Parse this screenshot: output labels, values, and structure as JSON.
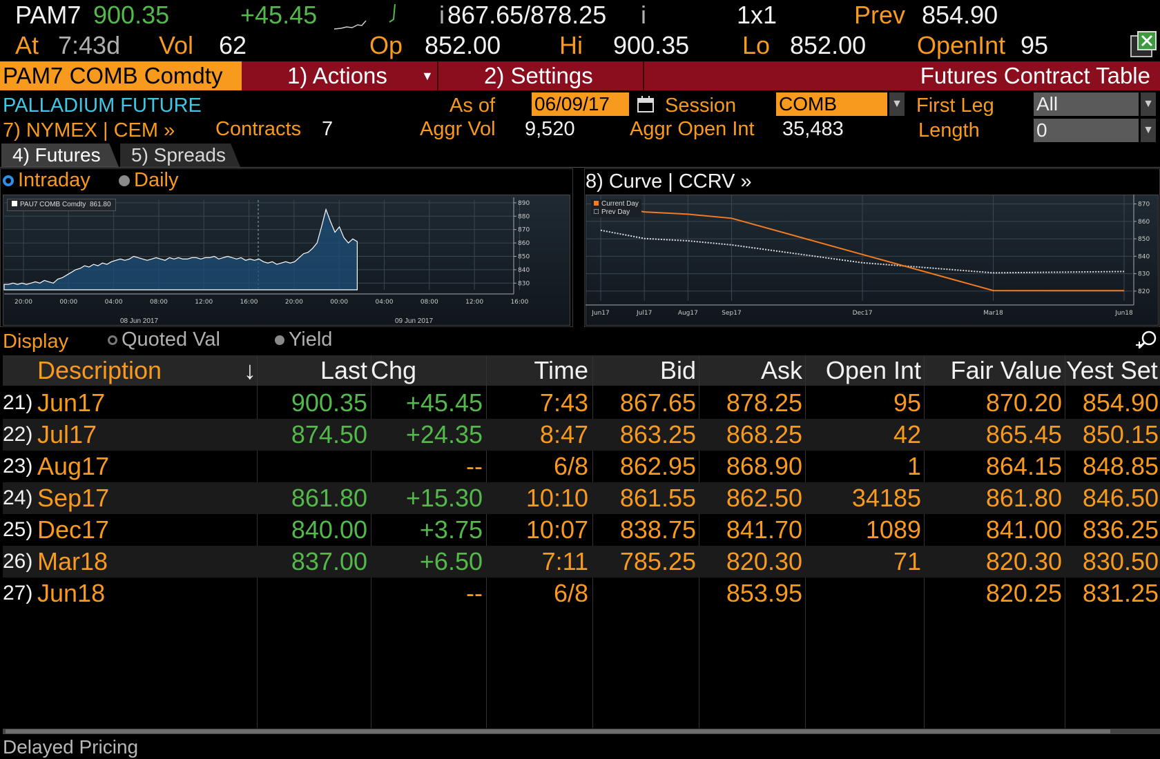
{
  "header": {
    "ticker": "PAM7",
    "last": "900.35",
    "change": "+45.45",
    "bid_ask": "867.65/878.25",
    "bid_ask_prefix": "i",
    "bid_ask_suffix": "i",
    "size": "1x1",
    "prev_label": "Prev",
    "prev_value": "854.90",
    "at_label": "At",
    "at_value": "7:43d",
    "vol_label": "Vol",
    "vol_value": "62",
    "op_label": "Op",
    "op_value": "852.00",
    "hi_label": "Hi",
    "hi_value": "900.35",
    "lo_label": "Lo",
    "lo_value": "852.00",
    "openint_label": "OpenInt",
    "openint_value": "95"
  },
  "toolbar": {
    "security": "PAM7 COMB Comdty",
    "actions": "1) Actions",
    "settings": "2) Settings",
    "title": "Futures Contract Table"
  },
  "info": {
    "name": "PALLADIUM FUTURE",
    "exchange": "7) NYMEX | CEM »",
    "contracts_label": "Contracts",
    "contracts_value": "7",
    "asof_label": "As of",
    "asof_value": "06/09/17",
    "aggr_vol_label": "Aggr Vol",
    "aggr_vol_value": "9,520",
    "session_label": "Session",
    "session_value": "COMB",
    "aggr_oi_label": "Aggr Open Int",
    "aggr_oi_value": "35,483",
    "first_leg_label": "First Leg",
    "first_leg_value": "All",
    "length_label": "Length",
    "length_value": "0"
  },
  "tabs": [
    {
      "label": "4) Futures"
    },
    {
      "label": "5) Spreads"
    }
  ],
  "intraday_panel": {
    "radio_intraday": "Intraday",
    "radio_daily": "Daily",
    "legend": "PAU7 COMB Comdty",
    "legend_value": "861.80",
    "date1": "08 Jun 2017",
    "date2": "09 Jun 2017"
  },
  "curve_panel": {
    "title": "8) Curve | CCRV »",
    "legend_current": "Current Day",
    "legend_prev": "Prev Day"
  },
  "display": {
    "label": "Display",
    "opt1": "Quoted Val",
    "opt2": "Yield"
  },
  "table": {
    "headers": {
      "description": "Description",
      "sort_arrow": "↓",
      "last": "Last",
      "chg": "Chg Settle",
      "time": "Time",
      "bid": "Bid",
      "ask": "Ask",
      "oi": "Open Int",
      "fv": "Fair Value",
      "ys": "Yest Set"
    },
    "rows": [
      {
        "num": "21)",
        "desc": "Jun17",
        "last": "900.35",
        "chg": "+45.45",
        "time": "7:43",
        "bid": "867.65",
        "ask": "878.25",
        "oi": "95",
        "fv": "870.20",
        "ys": "854.90"
      },
      {
        "num": "22)",
        "desc": "Jul17",
        "last": "874.50",
        "chg": "+24.35",
        "time": "8:47",
        "bid": "863.25",
        "ask": "868.25",
        "oi": "42",
        "fv": "865.45",
        "ys": "850.15"
      },
      {
        "num": "23)",
        "desc": "Aug17",
        "last": "",
        "chg": "--",
        "time": "6/8",
        "bid": "862.95",
        "ask": "868.90",
        "oi": "1",
        "fv": "864.15",
        "ys": "848.85"
      },
      {
        "num": "24)",
        "desc": "Sep17",
        "last": "861.80",
        "chg": "+15.30",
        "time": "10:10",
        "bid": "861.55",
        "ask": "862.50",
        "oi": "34185",
        "fv": "861.80",
        "ys": "846.50"
      },
      {
        "num": "25)",
        "desc": "Dec17",
        "last": "840.00",
        "chg": "+3.75",
        "time": "10:07",
        "bid": "838.75",
        "ask": "841.70",
        "oi": "1089",
        "fv": "841.00",
        "ys": "836.25"
      },
      {
        "num": "26)",
        "desc": "Mar18",
        "last": "837.00",
        "chg": "+6.50",
        "time": "7:11",
        "bid": "785.25",
        "ask": "820.30",
        "oi": "71",
        "fv": "820.30",
        "ys": "830.50"
      },
      {
        "num": "27)",
        "desc": "Jun18",
        "last": "",
        "chg": "--",
        "time": "6/8",
        "bid": "",
        "ask": "853.95",
        "oi": "",
        "fv": "820.25",
        "ys": "831.25"
      }
    ]
  },
  "footer": {
    "status": "Delayed Pricing"
  },
  "chart_data": [
    {
      "type": "area",
      "series": [
        {
          "name": "PAU7 COMB Comdty",
          "values": [
            829,
            829,
            830,
            829,
            830,
            829,
            830,
            831,
            830,
            832,
            831,
            830,
            833,
            834,
            836,
            838,
            840,
            841,
            843,
            842,
            844,
            843,
            845,
            844,
            846,
            847,
            848,
            847,
            848,
            850,
            849,
            848,
            847,
            848,
            849,
            848,
            847,
            849,
            848,
            849,
            848,
            848,
            849,
            849,
            848,
            849,
            849,
            850,
            848,
            849,
            850,
            849,
            848,
            849,
            847,
            848,
            847,
            848,
            846,
            845,
            846,
            844,
            845,
            846,
            845,
            846,
            849,
            852,
            853,
            856,
            860,
            872,
            885,
            876,
            868,
            872,
            864,
            860,
            863,
            861
          ]
        }
      ],
      "yticks": [
        "890",
        "880",
        "870",
        "860",
        "850",
        "840",
        "830"
      ],
      "ylim": [
        825,
        892
      ],
      "xticks": [
        "20:00",
        "00:00",
        "04:00",
        "08:00",
        "12:00",
        "16:00",
        "20:00",
        "00:00",
        "04:00",
        "08:00",
        "12:00",
        "16:00"
      ]
    },
    {
      "type": "line",
      "categories": [
        "Jun17",
        "Jul17",
        "Aug17",
        "Sep17",
        "Dec17",
        "Mar18",
        "Jun18"
      ],
      "series": [
        {
          "name": "Current Day",
          "values": [
            870.2,
            865.45,
            864.15,
            861.8,
            841.0,
            820.3,
            820.25
          ]
        },
        {
          "name": "Prev Day",
          "values": [
            854.9,
            850.15,
            848.85,
            846.5,
            836.25,
            830.5,
            831.25
          ]
        }
      ],
      "yticks": [
        "870",
        "860",
        "850",
        "840",
        "830",
        "820"
      ],
      "ylim": [
        816,
        873
      ],
      "colors": {
        "current": "#f47b20",
        "prev": "#e0e0e0"
      }
    }
  ]
}
